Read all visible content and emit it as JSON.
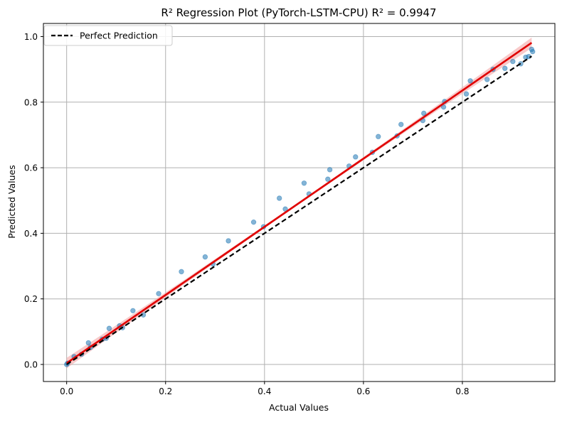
{
  "chart_data": {
    "type": "scatter",
    "title": "R² Regression Plot (PyTorch-LSTM-CPU) R² = 0.9947",
    "xlabel": "Actual Values",
    "ylabel": "Predicted Values",
    "xlim": [
      -0.047,
      0.987
    ],
    "ylim": [
      -0.052,
      1.04
    ],
    "xticks": [
      "0.0",
      "0.2",
      "0.4",
      "0.6",
      "0.8"
    ],
    "yticks": [
      "0.0",
      "0.2",
      "0.4",
      "0.6",
      "0.8",
      "1.0"
    ],
    "grid": true,
    "legend_position": "top-left",
    "legend": [
      {
        "label": "Perfect Prediction",
        "style": "dashed",
        "color": "#000000"
      }
    ],
    "colors": {
      "points": "#1f77b4",
      "fit_line": "#e00000",
      "fit_band": "#f4a6a6",
      "perfect_line": "#000000",
      "grid": "#b0b0b0"
    },
    "points": [
      {
        "x": 0.0,
        "y": 0.0
      },
      {
        "x": 0.002,
        "y": 0.004
      },
      {
        "x": 0.015,
        "y": 0.024
      },
      {
        "x": 0.03,
        "y": 0.031
      },
      {
        "x": 0.044,
        "y": 0.066
      },
      {
        "x": 0.048,
        "y": 0.052
      },
      {
        "x": 0.072,
        "y": 0.077
      },
      {
        "x": 0.08,
        "y": 0.08
      },
      {
        "x": 0.086,
        "y": 0.11
      },
      {
        "x": 0.107,
        "y": 0.118
      },
      {
        "x": 0.113,
        "y": 0.112
      },
      {
        "x": 0.134,
        "y": 0.164
      },
      {
        "x": 0.155,
        "y": 0.151
      },
      {
        "x": 0.186,
        "y": 0.216
      },
      {
        "x": 0.232,
        "y": 0.283
      },
      {
        "x": 0.28,
        "y": 0.328
      },
      {
        "x": 0.296,
        "y": 0.306
      },
      {
        "x": 0.327,
        "y": 0.377
      },
      {
        "x": 0.378,
        "y": 0.434
      },
      {
        "x": 0.398,
        "y": 0.42
      },
      {
        "x": 0.43,
        "y": 0.507
      },
      {
        "x": 0.442,
        "y": 0.474
      },
      {
        "x": 0.48,
        "y": 0.553
      },
      {
        "x": 0.49,
        "y": 0.52
      },
      {
        "x": 0.528,
        "y": 0.565
      },
      {
        "x": 0.532,
        "y": 0.594
      },
      {
        "x": 0.571,
        "y": 0.605
      },
      {
        "x": 0.584,
        "y": 0.633
      },
      {
        "x": 0.618,
        "y": 0.647
      },
      {
        "x": 0.63,
        "y": 0.695
      },
      {
        "x": 0.668,
        "y": 0.697
      },
      {
        "x": 0.676,
        "y": 0.732
      },
      {
        "x": 0.72,
        "y": 0.744
      },
      {
        "x": 0.722,
        "y": 0.766
      },
      {
        "x": 0.762,
        "y": 0.785
      },
      {
        "x": 0.764,
        "y": 0.802
      },
      {
        "x": 0.808,
        "y": 0.825
      },
      {
        "x": 0.816,
        "y": 0.865
      },
      {
        "x": 0.85,
        "y": 0.869
      },
      {
        "x": 0.862,
        "y": 0.9
      },
      {
        "x": 0.886,
        "y": 0.903
      },
      {
        "x": 0.902,
        "y": 0.924
      },
      {
        "x": 0.918,
        "y": 0.917
      },
      {
        "x": 0.928,
        "y": 0.937
      },
      {
        "x": 0.934,
        "y": 0.939
      },
      {
        "x": 0.94,
        "y": 0.961
      },
      {
        "x": 0.942,
        "y": 0.954
      }
    ],
    "fit_line": {
      "x": [
        0.0,
        0.94
      ],
      "y": [
        0.004,
        0.981
      ]
    },
    "perfect_line": {
      "x": [
        0.0,
        0.94
      ],
      "y": [
        0.0,
        0.94
      ]
    }
  }
}
